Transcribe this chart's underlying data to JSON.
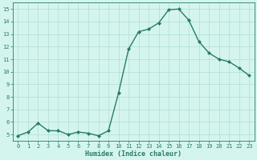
{
  "x": [
    0,
    1,
    2,
    3,
    4,
    5,
    6,
    7,
    8,
    9,
    10,
    11,
    12,
    13,
    14,
    15,
    16,
    17,
    18,
    19,
    20,
    21,
    22,
    23
  ],
  "y": [
    4.9,
    5.2,
    5.9,
    5.3,
    5.3,
    5.0,
    5.2,
    5.1,
    4.9,
    5.3,
    8.3,
    11.8,
    13.2,
    13.4,
    13.9,
    14.95,
    15.0,
    14.1,
    12.4,
    11.5,
    11.0,
    10.8,
    10.3,
    9.7
  ],
  "xlabel": "Humidex (Indice chaleur)",
  "xlim": [
    -0.5,
    23.5
  ],
  "ylim": [
    4.5,
    15.5
  ],
  "yticks": [
    5,
    6,
    7,
    8,
    9,
    10,
    11,
    12,
    13,
    14,
    15
  ],
  "xticks": [
    0,
    1,
    2,
    3,
    4,
    5,
    6,
    7,
    8,
    9,
    10,
    11,
    12,
    13,
    14,
    15,
    16,
    17,
    18,
    19,
    20,
    21,
    22,
    23
  ],
  "line_color": "#2a7a6a",
  "bg_color": "#d4f5ee",
  "grid_color": "#b0ddd5",
  "marker": "D",
  "marker_size": 2.0,
  "line_width": 1.0,
  "tick_fontsize": 5.0,
  "xlabel_fontsize": 6.0
}
